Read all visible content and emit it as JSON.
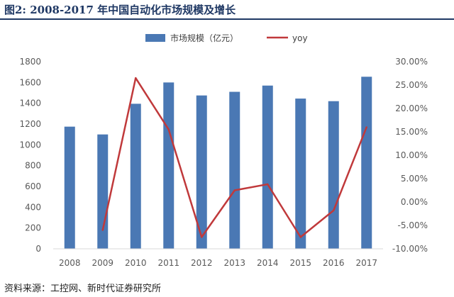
{
  "figure": {
    "title": "图2:  2008-2017 年中国自动化市场规模及增长",
    "source": "资料来源：工控网、新时代证券研究所"
  },
  "colors": {
    "bar": "#4a78b4",
    "line": "#c0393b",
    "header": "#1f3864",
    "axis": "#d9d9d9"
  },
  "chart_data": {
    "type": "bar",
    "categories": [
      "2008",
      "2009",
      "2010",
      "2011",
      "2012",
      "2013",
      "2014",
      "2015",
      "2016",
      "2017"
    ],
    "series": [
      {
        "name": "市场规模（亿元）",
        "type": "bar",
        "axis": "left",
        "values": [
          1175,
          1100,
          1395,
          1600,
          1475,
          1510,
          1570,
          1445,
          1420,
          1655
        ]
      },
      {
        "name": "yoy",
        "type": "line",
        "axis": "right",
        "values": [
          null,
          -6.0,
          26.5,
          15.5,
          -7.5,
          2.5,
          3.8,
          -7.5,
          -1.8,
          16.0
        ]
      }
    ],
    "left_axis": {
      "ylim": [
        0,
        1800
      ],
      "ticks": [
        0,
        200,
        400,
        600,
        800,
        1000,
        1200,
        1400,
        1600,
        1800
      ],
      "tick_labels": [
        "0",
        "200",
        "400",
        "600",
        "800",
        "1000",
        "1200",
        "1400",
        "1600",
        "1800"
      ]
    },
    "right_axis": {
      "ylim": [
        -10,
        30
      ],
      "ticks": [
        -10,
        -5,
        0,
        5,
        10,
        15,
        20,
        25,
        30
      ],
      "tick_labels": [
        "-10.00%",
        "-5.00%",
        "0.00%",
        "5.00%",
        "10.00%",
        "15.00%",
        "20.00%",
        "25.00%",
        "30.00%"
      ]
    },
    "grid": false,
    "legend_position": "top"
  }
}
